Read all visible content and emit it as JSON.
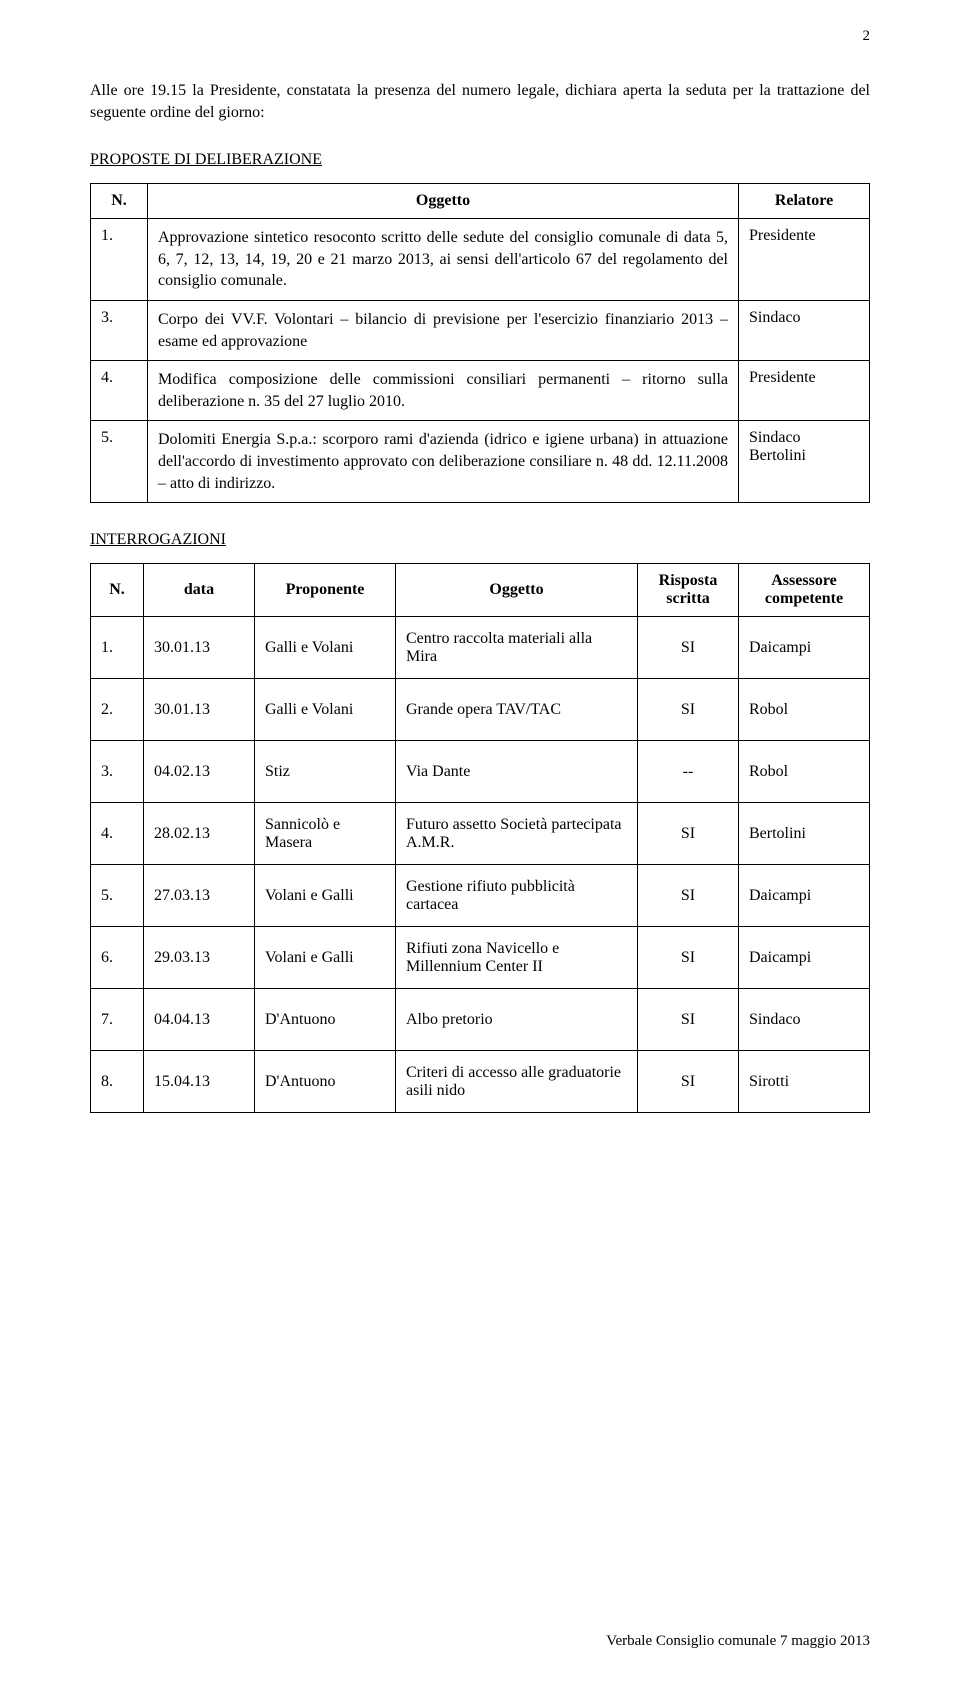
{
  "page_number": "2",
  "intro_text": "Alle ore 19.15 la Presidente, constatata la presenza del numero legale, dichiara aperta la seduta per la trattazione del seguente ordine del giorno:",
  "section_proposte": "PROPOSTE   DI   DELIBERAZIONE",
  "proposte": {
    "headers": {
      "n": "N.",
      "oggetto": "Oggetto",
      "relatore": "Relatore"
    },
    "rows": [
      {
        "n": "1.",
        "oggetto": "Approvazione sintetico resoconto scritto delle sedute del consiglio comunale di data 5, 6, 7, 12, 13, 14, 19, 20 e 21 marzo 2013, ai sensi dell'articolo 67 del regolamento del consiglio comunale.",
        "relatore": "Presidente"
      },
      {
        "n": "3.",
        "oggetto": "Corpo dei VV.F. Volontari – bilancio di previsione per l'esercizio finanziario 2013 – esame ed approvazione",
        "relatore": "Sindaco"
      },
      {
        "n": "4.",
        "oggetto": "Modifica composizione delle commissioni consiliari permanenti – ritorno sulla deliberazione n. 35 del 27 luglio 2010.",
        "relatore": "Presidente"
      },
      {
        "n": "5.",
        "oggetto": "Dolomiti Energia S.p.a.: scorporo rami d'azienda (idrico e igiene urbana) in attuazione dell'accordo di investimento approvato con deliberazione consiliare n. 48 dd. 12.11.2008 – atto di indirizzo.",
        "relatore": "Sindaco Bertolini"
      }
    ]
  },
  "section_interrogazioni": "INTERROGAZIONI",
  "interrogazioni": {
    "headers": {
      "n": "N.",
      "data": "data",
      "proponente": "Proponente",
      "oggetto": "Oggetto",
      "risposta": "Risposta scritta",
      "assessore": "Assessore competente"
    },
    "rows": [
      {
        "n": "1.",
        "data": "30.01.13",
        "proponente": "Galli e Volani",
        "oggetto": "Centro raccolta materiali alla Mira",
        "risposta": "SI",
        "assessore": "Daicampi"
      },
      {
        "n": "2.",
        "data": "30.01.13",
        "proponente": "Galli e Volani",
        "oggetto": "Grande opera TAV/TAC",
        "risposta": "SI",
        "assessore": "Robol"
      },
      {
        "n": "3.",
        "data": "04.02.13",
        "proponente": "Stiz",
        "oggetto": "Via Dante",
        "risposta": "--",
        "assessore": "Robol"
      },
      {
        "n": "4.",
        "data": "28.02.13",
        "proponente": "Sannicolò e Masera",
        "oggetto": "Futuro assetto Società partecipata A.M.R.",
        "risposta": "SI",
        "assessore": "Bertolini"
      },
      {
        "n": "5.",
        "data": "27.03.13",
        "proponente": "Volani e Galli",
        "oggetto": "Gestione rifiuto pubblicità cartacea",
        "risposta": "SI",
        "assessore": "Daicampi"
      },
      {
        "n": "6.",
        "data": "29.03.13",
        "proponente": "Volani e Galli",
        "oggetto": "Rifiuti zona Navicello e Millennium Center II",
        "risposta": "SI",
        "assessore": "Daicampi"
      },
      {
        "n": "7.",
        "data": "04.04.13",
        "proponente": "D'Antuono",
        "oggetto": "Albo pretorio",
        "risposta": "SI",
        "assessore": "Sindaco"
      },
      {
        "n": "8.",
        "data": "15.04.13",
        "proponente": "D'Antuono",
        "oggetto": "Criteri di accesso alle graduatorie asili nido",
        "risposta": "SI",
        "assessore": "Sirotti"
      }
    ]
  },
  "footer_text": "Verbale Consiglio comunale 7 maggio 2013"
}
